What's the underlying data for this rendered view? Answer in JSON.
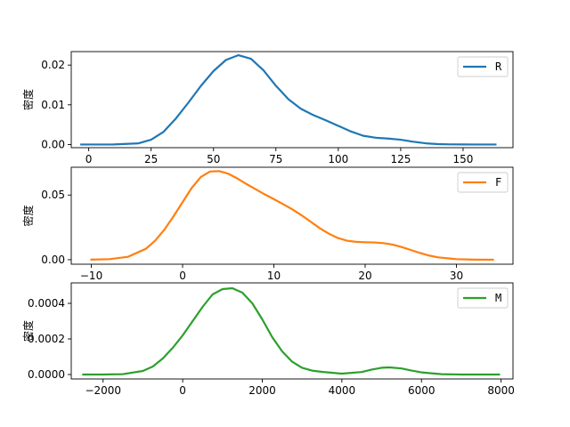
{
  "chart_data": [
    {
      "type": "line",
      "title": "",
      "xlabel": "",
      "ylabel": "密度",
      "xlim": [
        -7,
        170
      ],
      "ylim": [
        -0.0008,
        0.0234
      ],
      "xticks": [
        0,
        25,
        50,
        75,
        100,
        125,
        150
      ],
      "xtick_labels": [
        "0",
        "25",
        "50",
        "75",
        "100",
        "125",
        "150"
      ],
      "yticks": [
        0.0,
        0.01,
        0.02
      ],
      "ytick_labels": [
        "0.00",
        "0.01",
        "0.02"
      ],
      "grid": false,
      "legend_position": "top-right",
      "series": [
        {
          "name": "R",
          "color": "#1f77b4",
          "x": [
            -3,
            10,
            20,
            25,
            30,
            35,
            40,
            45,
            50,
            55,
            60,
            65,
            70,
            75,
            80,
            85,
            90,
            95,
            100,
            105,
            110,
            115,
            120,
            125,
            130,
            135,
            140,
            145,
            150,
            155,
            163
          ],
          "y": [
            0.0,
            2e-05,
            0.0003,
            0.0012,
            0.0032,
            0.0066,
            0.0106,
            0.0148,
            0.0185,
            0.0213,
            0.0225,
            0.0216,
            0.0187,
            0.0148,
            0.0114,
            0.009,
            0.0074,
            0.0061,
            0.0047,
            0.0033,
            0.0022,
            0.0017,
            0.0015,
            0.0012,
            0.0007,
            0.0003,
            0.0001,
            3e-05,
            1e-05,
            0.0,
            0.0
          ]
        }
      ]
    },
    {
      "type": "line",
      "title": "",
      "xlabel": "",
      "ylabel": "密度",
      "xlim": [
        -12.2,
        36.2
      ],
      "ylim": [
        -0.0035,
        0.0715
      ],
      "xticks": [
        -10,
        0,
        10,
        20,
        30
      ],
      "xtick_labels": [
        "−10",
        "0",
        "10",
        "20",
        "30"
      ],
      "yticks": [
        0.0,
        0.05
      ],
      "ytick_labels": [
        "0.00",
        "0.05"
      ],
      "grid": false,
      "legend_position": "top-right",
      "series": [
        {
          "name": "F",
          "color": "#ff7f0e",
          "x": [
            -10,
            -8,
            -6,
            -4,
            -3,
            -2,
            -1,
            0,
            1,
            2,
            3,
            4,
            5,
            6,
            7,
            8,
            9,
            10,
            11,
            12,
            13,
            14,
            15,
            16,
            17,
            18,
            19,
            20,
            21,
            22,
            23,
            24,
            25,
            26,
            27,
            28,
            30,
            32,
            34
          ],
          "y": [
            0.0,
            0.0004,
            0.0022,
            0.0085,
            0.0148,
            0.0232,
            0.0335,
            0.0445,
            0.0555,
            0.064,
            0.0682,
            0.0685,
            0.0665,
            0.0628,
            0.0585,
            0.0545,
            0.0505,
            0.0468,
            0.043,
            0.039,
            0.0345,
            0.0295,
            0.0245,
            0.0202,
            0.0168,
            0.0147,
            0.0138,
            0.0135,
            0.0133,
            0.0128,
            0.0117,
            0.0098,
            0.0075,
            0.0052,
            0.0032,
            0.0018,
            0.0004,
            5e-05,
            0.0
          ]
        }
      ]
    },
    {
      "type": "line",
      "title": "",
      "xlabel": "",
      "ylabel": "密度",
      "xlim": [
        -2800,
        8300
      ],
      "ylim": [
        -2.5e-05,
        0.000515
      ],
      "xticks": [
        -2000,
        0,
        2000,
        4000,
        6000,
        8000
      ],
      "xtick_labels": [
        "−2000",
        "0",
        "2000",
        "4000",
        "6000",
        "8000"
      ],
      "yticks": [
        0.0,
        0.0002,
        0.0004
      ],
      "ytick_labels": [
        "0.0000",
        "0.0002",
        "0.0004"
      ],
      "grid": false,
      "legend_position": "top-right",
      "series": [
        {
          "name": "M",
          "color": "#2ca02c",
          "x": [
            -2500,
            -2000,
            -1500,
            -1000,
            -750,
            -500,
            -250,
            0,
            250,
            500,
            750,
            1000,
            1250,
            1500,
            1750,
            2000,
            2250,
            2500,
            2750,
            3000,
            3250,
            3500,
            4000,
            4500,
            4750,
            5000,
            5200,
            5500,
            5750,
            6000,
            6500,
            7000,
            7500,
            7950
          ],
          "y": [
            0.0,
            0.0,
            2e-06,
            2e-05,
            4.5e-05,
            9e-05,
            0.00015,
            0.00022,
            0.0003,
            0.00038,
            0.00045,
            0.00048,
            0.000485,
            0.00046,
            0.0004,
            0.00031,
            0.00021,
            0.00013,
            7.2e-05,
            3.8e-05,
            2.2e-05,
            1.5e-05,
            5e-06,
            1.4e-05,
            2.8e-05,
            3.8e-05,
            4e-05,
            3.4e-05,
            2.2e-05,
            1.2e-05,
            2e-06,
            0.0,
            0.0,
            0.0
          ]
        }
      ]
    }
  ]
}
